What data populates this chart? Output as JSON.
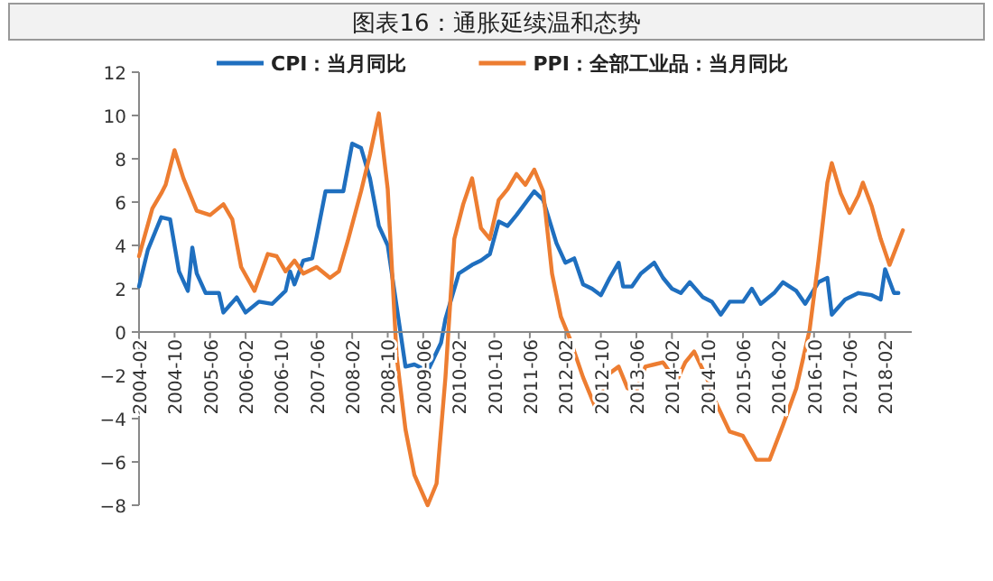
{
  "chart_data": {
    "type": "line",
    "title": "图表16：通胀延续温和态势",
    "xlim": [
      "2004-02",
      "2018-08"
    ],
    "xticks": [
      "2004-02",
      "2004-10",
      "2005-06",
      "2006-02",
      "2006-10",
      "2007-06",
      "2008-02",
      "2008-10",
      "2009-06",
      "2010-02",
      "2010-10",
      "2011-06",
      "2012-02",
      "2012-10",
      "2013-06",
      "2014-02",
      "2014-10",
      "2015-06",
      "2016-02",
      "2016-10",
      "2017-06",
      "2018-02"
    ],
    "ylim": [
      -8,
      12
    ],
    "yticks": [
      -8,
      -6,
      -4,
      -2,
      0,
      2,
      4,
      6,
      8,
      10,
      12
    ],
    "grid": false,
    "legend": "top",
    "series": [
      {
        "name": "CPI：当月同比",
        "color": "#1f6fbf",
        "x": [
          "2004-02",
          "2004-04",
          "2004-07",
          "2004-09",
          "2004-11",
          "2005-01",
          "2005-02",
          "2005-03",
          "2005-05",
          "2005-08",
          "2005-09",
          "2005-12",
          "2006-02",
          "2006-05",
          "2006-08",
          "2006-11",
          "2006-12",
          "2007-01",
          "2007-03",
          "2007-05",
          "2007-06",
          "2007-08",
          "2007-10",
          "2007-12",
          "2008-02",
          "2008-04",
          "2008-06",
          "2008-08",
          "2008-10",
          "2008-12",
          "2009-02",
          "2009-04",
          "2009-07",
          "2009-10",
          "2009-11",
          "2010-02",
          "2010-05",
          "2010-07",
          "2010-09",
          "2010-11",
          "2011-01",
          "2011-03",
          "2011-07",
          "2011-09",
          "2011-12",
          "2012-02",
          "2012-04",
          "2012-06",
          "2012-08",
          "2012-10",
          "2012-12",
          "2013-02",
          "2013-03",
          "2013-05",
          "2013-07",
          "2013-10",
          "2013-12",
          "2014-02",
          "2014-04",
          "2014-06",
          "2014-09",
          "2014-11",
          "2015-01",
          "2015-03",
          "2015-06",
          "2015-08",
          "2015-10",
          "2016-01",
          "2016-03",
          "2016-06",
          "2016-08",
          "2016-11",
          "2017-01",
          "2017-02",
          "2017-05",
          "2017-08",
          "2017-11",
          "2018-01",
          "2018-02",
          "2018-04",
          "2018-05"
        ],
        "values": [
          2.1,
          3.8,
          5.3,
          5.2,
          2.8,
          1.9,
          3.9,
          2.7,
          1.8,
          1.8,
          0.9,
          1.6,
          0.9,
          1.4,
          1.3,
          1.9,
          2.8,
          2.2,
          3.3,
          3.4,
          4.4,
          6.5,
          6.5,
          6.5,
          8.7,
          8.5,
          7.1,
          4.9,
          4.0,
          1.2,
          -1.6,
          -1.5,
          -1.8,
          -0.5,
          0.6,
          2.7,
          3.1,
          3.3,
          3.6,
          5.1,
          4.9,
          5.4,
          6.5,
          6.1,
          4.1,
          3.2,
          3.4,
          2.2,
          2.0,
          1.7,
          2.5,
          3.2,
          2.1,
          2.1,
          2.7,
          3.2,
          2.5,
          2.0,
          1.8,
          2.3,
          1.6,
          1.4,
          0.8,
          1.4,
          1.4,
          2.0,
          1.3,
          1.8,
          2.3,
          1.9,
          1.3,
          2.3,
          2.5,
          0.8,
          1.5,
          1.8,
          1.7,
          1.5,
          2.9,
          1.8,
          1.8
        ]
      },
      {
        "name": "PPI：全部工业品：当月同比",
        "color": "#ed7d31",
        "x": [
          "2004-02",
          "2004-05",
          "2004-07",
          "2004-08",
          "2004-10",
          "2004-12",
          "2005-03",
          "2005-06",
          "2005-09",
          "2005-11",
          "2006-01",
          "2006-04",
          "2006-07",
          "2006-09",
          "2006-11",
          "2007-01",
          "2007-03",
          "2007-06",
          "2007-09",
          "2007-11",
          "2008-01",
          "2008-04",
          "2008-06",
          "2008-08",
          "2008-10",
          "2008-12",
          "2009-02",
          "2009-04",
          "2009-07",
          "2009-09",
          "2009-11",
          "2010-01",
          "2010-03",
          "2010-05",
          "2010-07",
          "2010-09",
          "2010-11",
          "2011-01",
          "2011-03",
          "2011-05",
          "2011-07",
          "2011-09",
          "2011-11",
          "2012-01",
          "2012-03",
          "2012-06",
          "2012-09",
          "2012-12",
          "2013-02",
          "2013-04",
          "2013-06",
          "2013-08",
          "2013-10",
          "2013-12",
          "2014-03",
          "2014-05",
          "2014-07",
          "2014-10",
          "2014-12",
          "2015-03",
          "2015-06",
          "2015-09",
          "2015-12",
          "2016-03",
          "2016-06",
          "2016-09",
          "2016-11",
          "2017-01",
          "2017-02",
          "2017-04",
          "2017-06",
          "2017-08",
          "2017-09",
          "2017-11",
          "2018-01",
          "2018-03",
          "2018-06"
        ],
        "values": [
          3.5,
          5.7,
          6.4,
          6.8,
          8.4,
          7.1,
          5.6,
          5.4,
          5.9,
          5.2,
          3.0,
          1.9,
          3.6,
          3.5,
          2.8,
          3.3,
          2.7,
          3.0,
          2.5,
          2.8,
          4.2,
          6.5,
          8.2,
          10.1,
          6.6,
          -1.1,
          -4.5,
          -6.6,
          -8.0,
          -7.0,
          -2.1,
          4.3,
          5.9,
          7.1,
          4.8,
          4.3,
          6.1,
          6.6,
          7.3,
          6.8,
          7.5,
          6.5,
          2.7,
          0.7,
          -0.3,
          -2.1,
          -3.6,
          -1.9,
          -1.6,
          -2.6,
          -2.7,
          -1.6,
          -1.5,
          -1.4,
          -2.3,
          -1.4,
          -0.9,
          -2.2,
          -3.3,
          -4.6,
          -4.8,
          -5.9,
          -5.9,
          -4.3,
          -2.6,
          0.1,
          3.3,
          6.9,
          7.8,
          6.4,
          5.5,
          6.3,
          6.9,
          5.8,
          4.3,
          3.1,
          4.7
        ]
      }
    ]
  }
}
